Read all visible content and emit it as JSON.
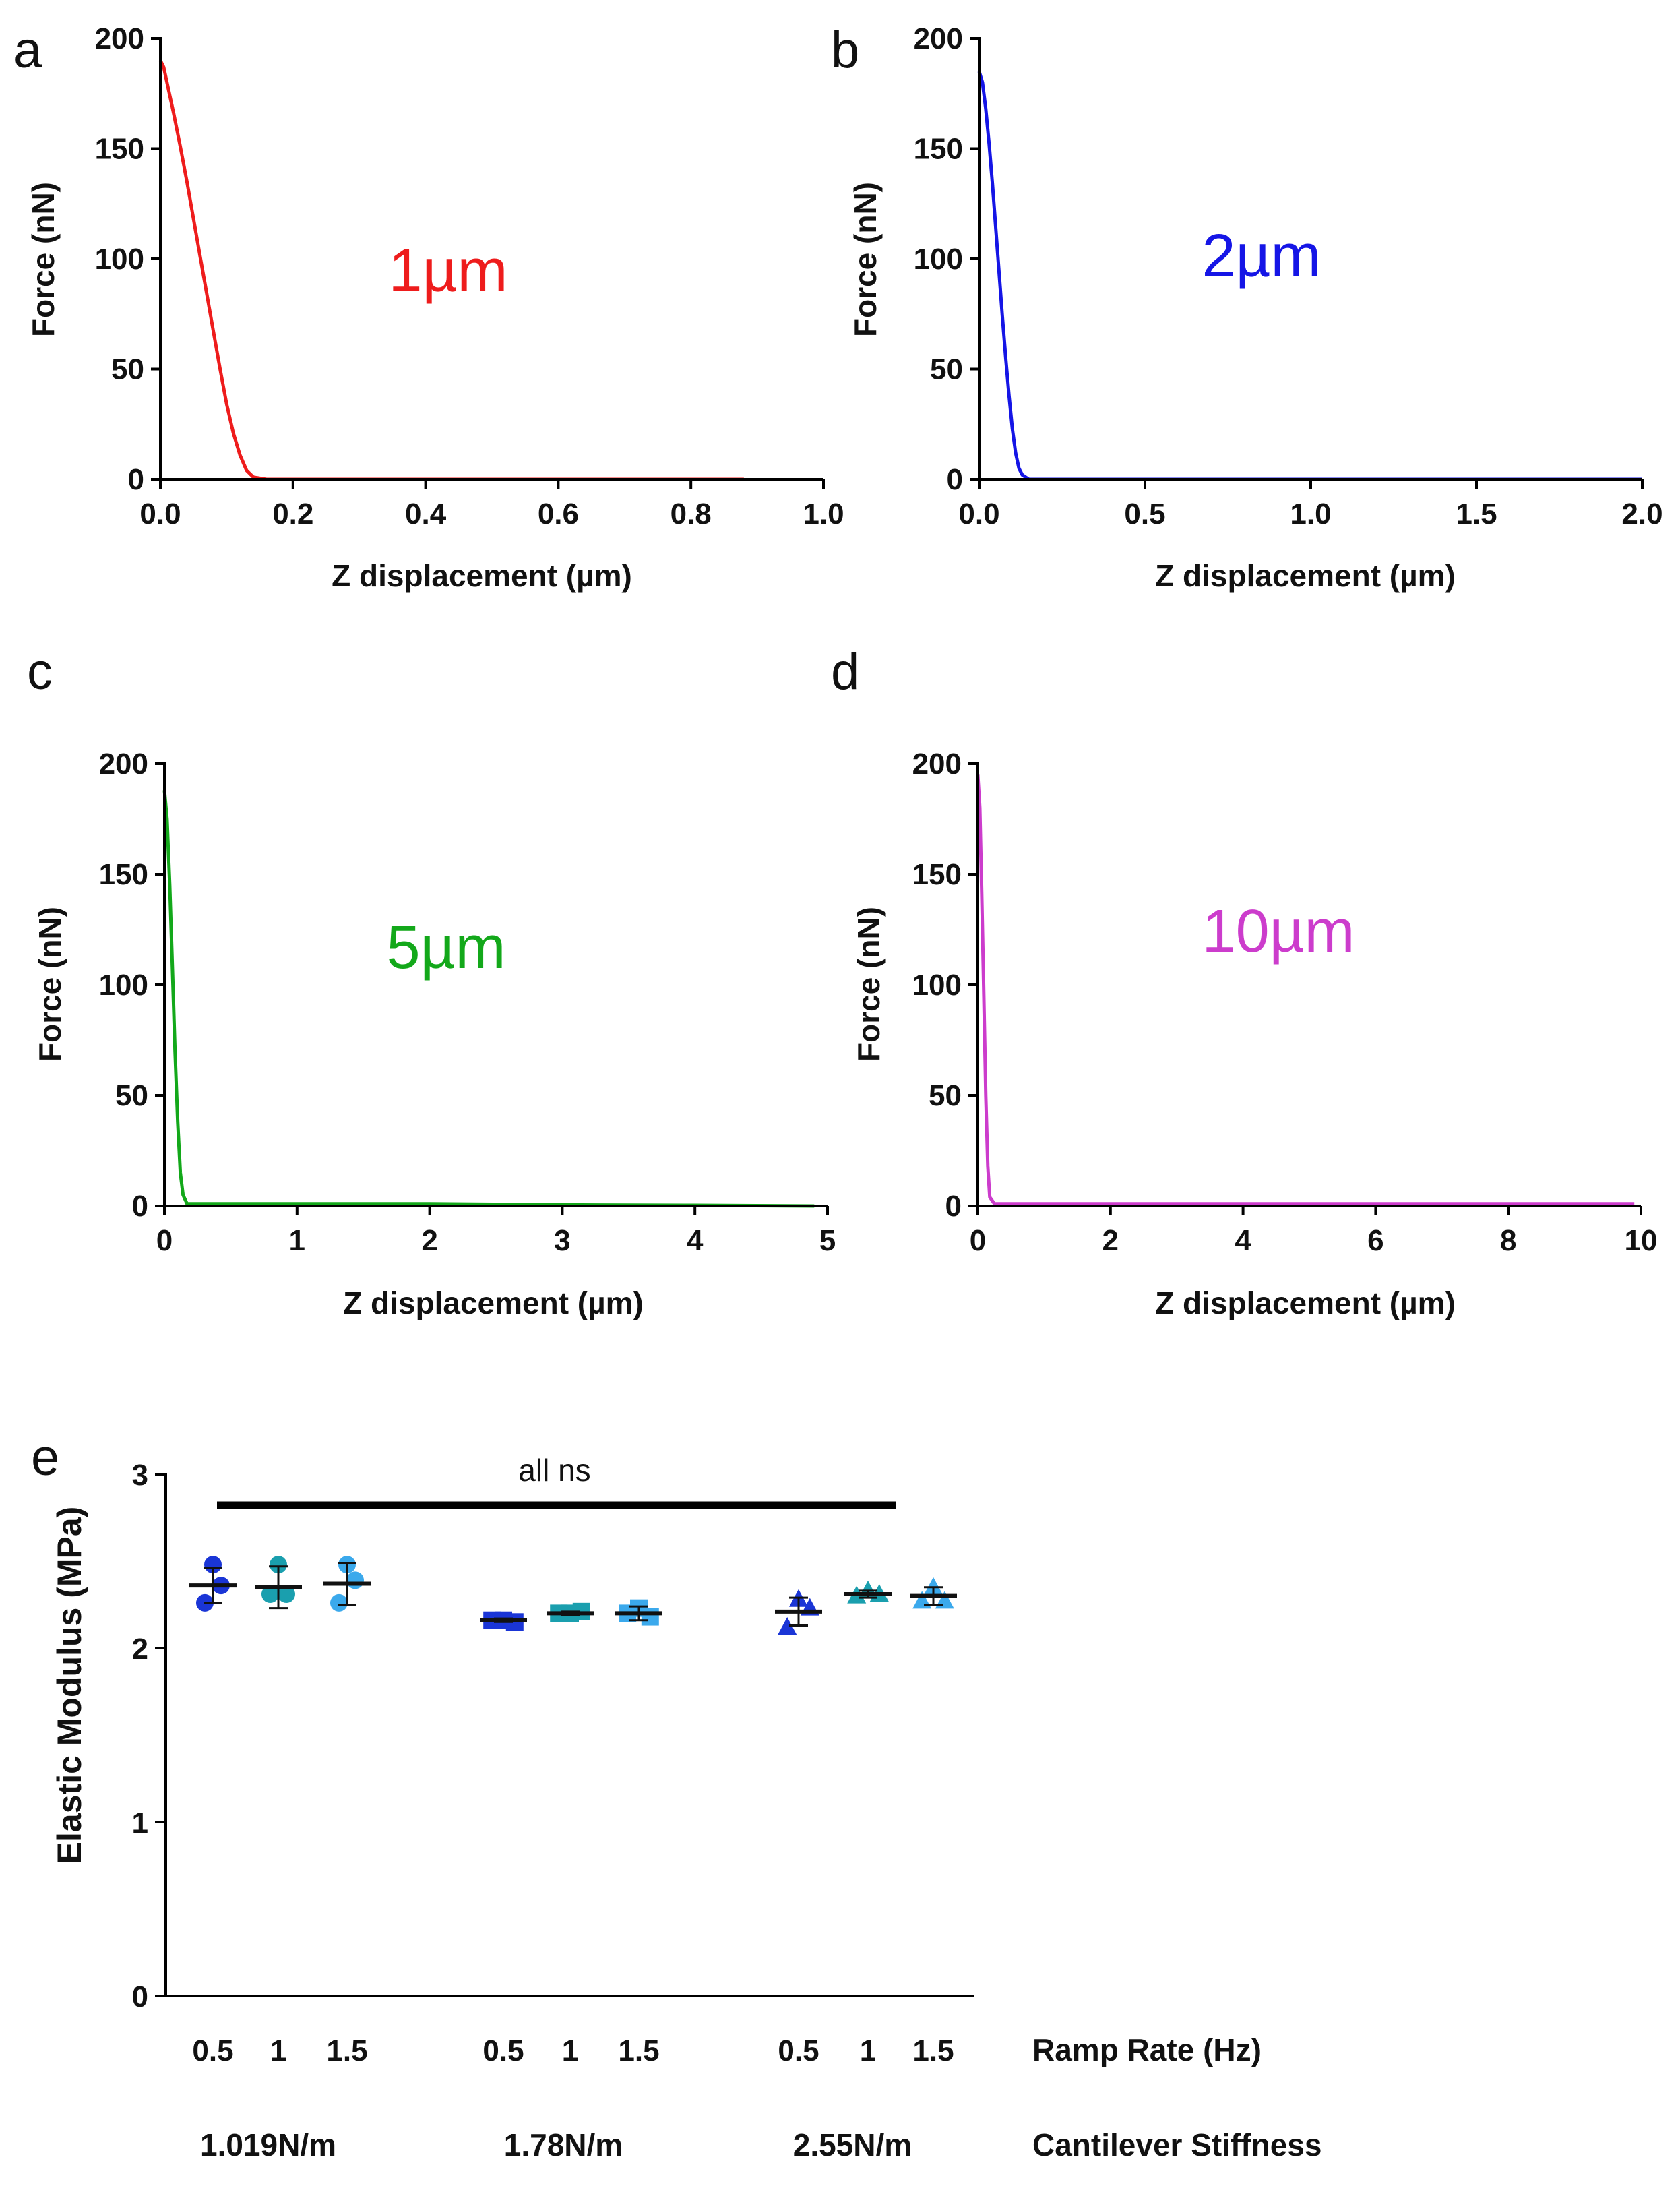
{
  "panels": [
    {
      "letter": "a",
      "chart_data": {
        "type": "line",
        "xlabel": "Z displacement (µm)",
        "ylabel": "Force (nN)",
        "xlim": [
          0,
          1.0
        ],
        "ylim": [
          0,
          200
        ],
        "xticks": [
          0,
          0.2,
          0.4,
          0.6,
          0.8,
          1.0
        ],
        "xtick_labels": [
          "0.0",
          "0.2",
          "0.4",
          "0.6",
          "0.8",
          "1.0"
        ],
        "yticks": [
          0,
          50,
          100,
          150,
          200
        ],
        "ytick_labels": [
          "0",
          "50",
          "100",
          "150",
          "200"
        ],
        "annotation": "1µm",
        "color": "#ee1c1c",
        "series": [
          {
            "name": "1µm",
            "x": [
              0,
              0.005,
              0.01,
              0.02,
              0.03,
              0.04,
              0.05,
              0.06,
              0.07,
              0.08,
              0.09,
              0.1,
              0.11,
              0.12,
              0.13,
              0.14,
              0.16,
              0.2,
              0.4,
              0.6,
              0.88
            ],
            "y": [
              190,
              187,
              180,
              166,
              151,
              135,
              118,
              101,
              84,
              67,
              50,
              34,
              21,
              11,
              4,
              1,
              0,
              0,
              0,
              0,
              0
            ]
          }
        ]
      }
    },
    {
      "letter": "b",
      "chart_data": {
        "type": "line",
        "xlabel": "Z displacement (µm)",
        "ylabel": "Force (nN)",
        "xlim": [
          0,
          2.0
        ],
        "ylim": [
          0,
          200
        ],
        "xticks": [
          0,
          0.5,
          1.0,
          1.5,
          2.0
        ],
        "xtick_labels": [
          "0.0",
          "0.5",
          "1.0",
          "1.5",
          "2.0"
        ],
        "yticks": [
          0,
          50,
          100,
          150,
          200
        ],
        "ytick_labels": [
          "0",
          "50",
          "100",
          "150",
          "200"
        ],
        "annotation": "2µm",
        "color": "#1515e6",
        "series": [
          {
            "name": "2µm",
            "x": [
              0,
              0.01,
              0.02,
              0.03,
              0.04,
              0.05,
              0.06,
              0.07,
              0.08,
              0.09,
              0.1,
              0.11,
              0.12,
              0.13,
              0.15,
              0.2,
              0.5,
              1.0,
              1.5,
              2.0
            ],
            "y": [
              185,
              180,
              168,
              152,
              134,
              114,
              94,
              74,
              55,
              38,
              23,
              12,
              5,
              2,
              0,
              0,
              0,
              0,
              0,
              0
            ]
          }
        ]
      }
    },
    {
      "letter": "c",
      "chart_data": {
        "type": "line",
        "xlabel": "Z displacement (µm)",
        "ylabel": "Force (nN)",
        "xlim": [
          0,
          5
        ],
        "ylim": [
          0,
          200
        ],
        "xticks": [
          0,
          1,
          2,
          3,
          4,
          5
        ],
        "xtick_labels": [
          "0",
          "1",
          "2",
          "3",
          "4",
          "5"
        ],
        "yticks": [
          0,
          50,
          100,
          150,
          200
        ],
        "ytick_labels": [
          "0",
          "50",
          "100",
          "150",
          "200"
        ],
        "annotation": "5µm",
        "color": "#13a81a",
        "series": [
          {
            "name": "5µm",
            "x": [
              0,
              0.02,
              0.04,
              0.06,
              0.08,
              0.1,
              0.12,
              0.14,
              0.17,
              0.3,
              1,
              2,
              3,
              4,
              4.9
            ],
            "y": [
              188,
              175,
              145,
              108,
              70,
              38,
              15,
              5,
              1,
              1,
              1,
              1,
              0.5,
              0.3,
              0
            ]
          }
        ]
      }
    },
    {
      "letter": "d",
      "chart_data": {
        "type": "line",
        "xlabel": "Z displacement (µm)",
        "ylabel": "Force (nN)",
        "xlim": [
          0,
          10
        ],
        "ylim": [
          0,
          200
        ],
        "xticks": [
          0,
          2,
          4,
          6,
          8,
          10
        ],
        "xtick_labels": [
          "0",
          "2",
          "4",
          "6",
          "8",
          "10"
        ],
        "yticks": [
          0,
          50,
          100,
          150,
          200
        ],
        "ytick_labels": [
          "0",
          "50",
          "100",
          "150",
          "200"
        ],
        "annotation": "10µm",
        "color": "#cc3ccc",
        "series": [
          {
            "name": "10µm",
            "x": [
              0,
              0.03,
              0.06,
              0.09,
              0.12,
              0.15,
              0.18,
              0.25,
              1,
              5,
              9.9
            ],
            "y": [
              195,
              180,
              140,
              95,
              50,
              18,
              4,
              1,
              1,
              1,
              1
            ]
          }
        ]
      }
    },
    {
      "letter": "e",
      "chart_data": {
        "type": "scatter",
        "ylabel": "Elastic Modulus (MPa)",
        "ylim": [
          0,
          3
        ],
        "yticks": [
          0,
          1,
          2,
          3
        ],
        "ytick_labels": [
          "0",
          "1",
          "2",
          "3"
        ],
        "significance": "all ns",
        "ramp_rate_title": "Ramp Rate (Hz)",
        "stiffness_title": "Cantilever Stiffness",
        "ramp_rates": [
          "0.5",
          "1",
          "1.5"
        ],
        "stiffness_labels": [
          "1.019N/m",
          "1.78N/m",
          "2.55N/m"
        ],
        "colors": {
          "0.5": "#1a35d6",
          "1": "#1a9fae",
          "1.5": "#3ba9ec"
        },
        "groups": [
          {
            "stiffness": "1.019N/m",
            "ramp": "0.5",
            "marker": "circle",
            "mean": 2.36,
            "sd": 0.1,
            "points": [
              2.48,
              2.36,
              2.26
            ]
          },
          {
            "stiffness": "1.019N/m",
            "ramp": "1",
            "marker": "circle",
            "mean": 2.35,
            "sd": 0.12,
            "points": [
              2.48,
              2.31,
              2.31
            ]
          },
          {
            "stiffness": "1.019N/m",
            "ramp": "1.5",
            "marker": "circle",
            "mean": 2.37,
            "sd": 0.12,
            "points": [
              2.48,
              2.39,
              2.26
            ]
          },
          {
            "stiffness": "1.78N/m",
            "ramp": "0.5",
            "marker": "square",
            "mean": 2.16,
            "sd": 0.01,
            "points": [
              2.16,
              2.15,
              2.16
            ]
          },
          {
            "stiffness": "1.78N/m",
            "ramp": "1",
            "marker": "square",
            "mean": 2.2,
            "sd": 0.01,
            "points": [
              2.2,
              2.21,
              2.2
            ]
          },
          {
            "stiffness": "1.78N/m",
            "ramp": "1.5",
            "marker": "square",
            "mean": 2.2,
            "sd": 0.04,
            "points": [
              2.23,
              2.18,
              2.2
            ]
          },
          {
            "stiffness": "2.55N/m",
            "ramp": "0.5",
            "marker": "triangle",
            "mean": 2.21,
            "sd": 0.08,
            "points": [
              2.28,
              2.23,
              2.12
            ]
          },
          {
            "stiffness": "2.55N/m",
            "ramp": "1",
            "marker": "triangle",
            "mean": 2.31,
            "sd": 0.02,
            "points": [
              2.33,
              2.31,
              2.3
            ]
          },
          {
            "stiffness": "2.55N/m",
            "ramp": "1.5",
            "marker": "triangle",
            "mean": 2.3,
            "sd": 0.05,
            "points": [
              2.35,
              2.27,
              2.27
            ]
          }
        ]
      }
    }
  ]
}
